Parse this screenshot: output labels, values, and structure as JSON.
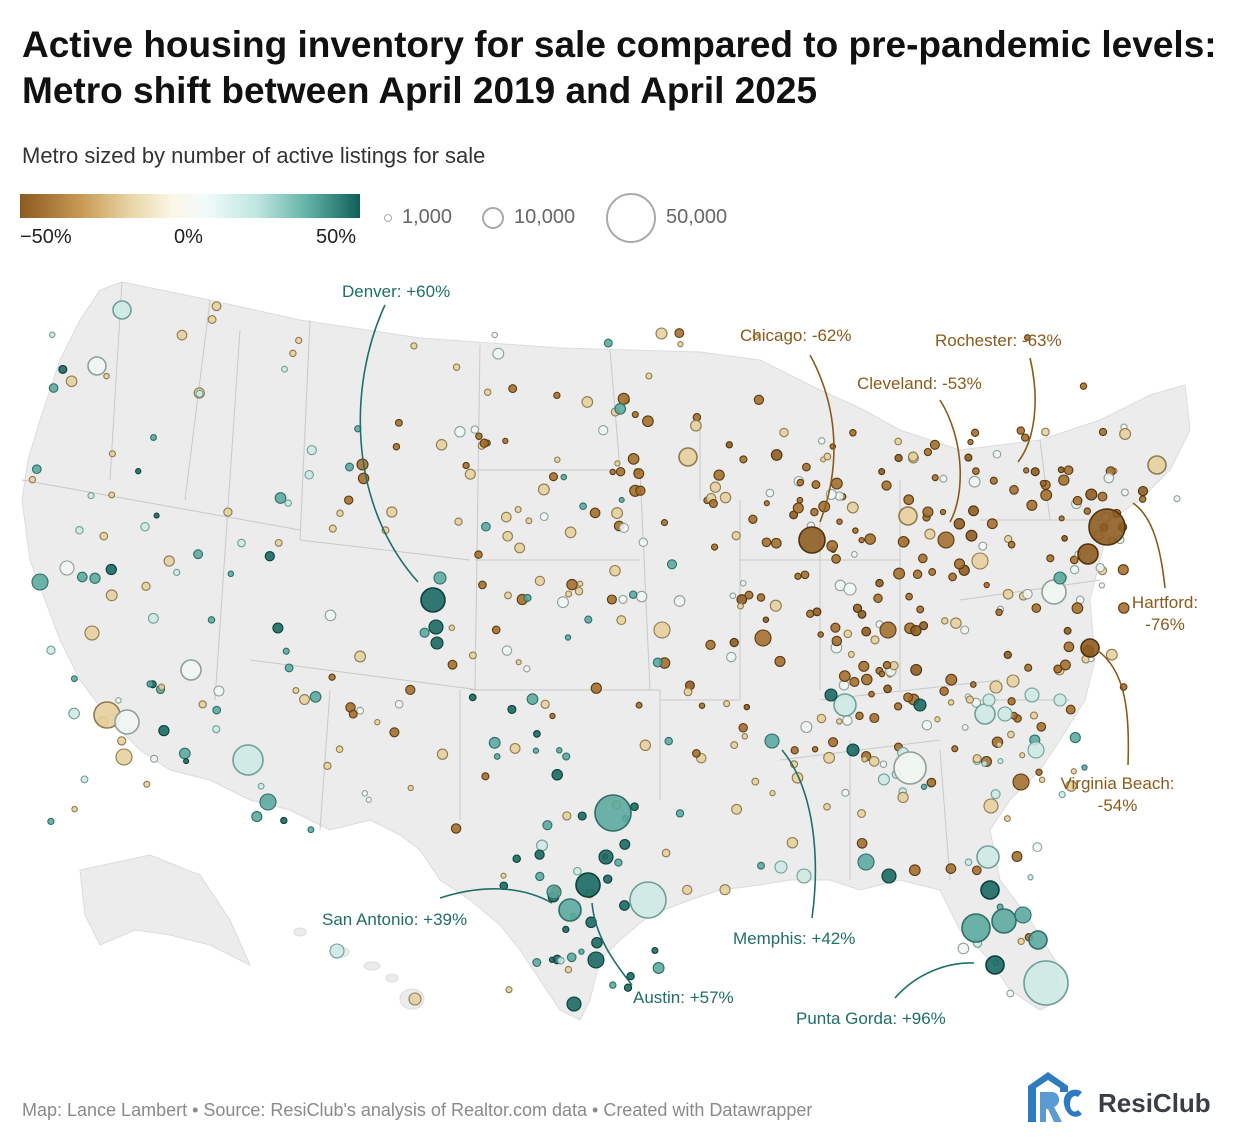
{
  "header": {
    "title": "Active housing inventory for sale compared to pre-pandemic levels: Metro shift between April 2019 and April 2025",
    "subtitle": "Metro sized by number of active listings for sale"
  },
  "color_legend": {
    "ticks": [
      "−50%",
      "0%",
      "50%"
    ],
    "colors": {
      "low": "#8c5a1e",
      "mid": "#f7f5ec",
      "high": "#0f5f58"
    }
  },
  "size_legend": {
    "items": [
      "1,000",
      "10,000",
      "50,000"
    ]
  },
  "annotations": [
    {
      "label": "Denver: +60%",
      "metro": "Denver",
      "change_pct": 60,
      "color": "#1f6f68"
    },
    {
      "label": "Chicago: -62%",
      "metro": "Chicago",
      "change_pct": -62,
      "color": "#8a5a1a"
    },
    {
      "label": "Cleveland: -53%",
      "metro": "Cleveland",
      "change_pct": -53,
      "color": "#8a5a1a"
    },
    {
      "label": "Rochester: -63%",
      "metro": "Rochester",
      "change_pct": -63,
      "color": "#8a5a1a"
    },
    {
      "label": "Hartford:",
      "label2": "-76%",
      "metro": "Hartford",
      "change_pct": -76,
      "color": "#8a5a1a"
    },
    {
      "label": "Virginia Beach:",
      "label2": "-54%",
      "metro": "Virginia Beach",
      "change_pct": -54,
      "color": "#8a5a1a"
    },
    {
      "label": "San Antonio: +39%",
      "metro": "San Antonio",
      "change_pct": 39,
      "color": "#1f6f68"
    },
    {
      "label": "Austin: +57%",
      "metro": "Austin",
      "change_pct": 57,
      "color": "#1f6f68"
    },
    {
      "label": "Memphis: +42%",
      "metro": "Memphis",
      "change_pct": 42,
      "color": "#1f6f68"
    },
    {
      "label": "Punta Gorda: +96%",
      "metro": "Punta Gorda",
      "change_pct": 96,
      "color": "#1f6f68"
    }
  ],
  "footer": {
    "source": "Map: Lance Lambert • Source: ResiClub's analysis of Realtor.com data • Created with Datawrapper",
    "brand": "ResiClub"
  }
}
